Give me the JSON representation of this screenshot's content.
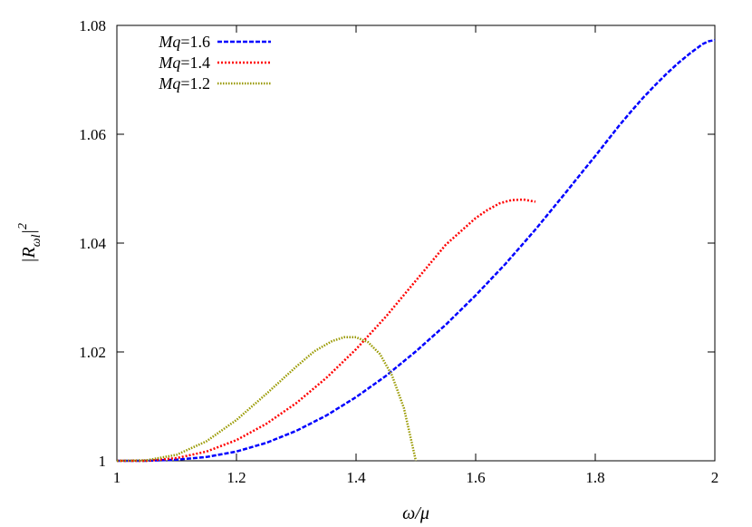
{
  "chart_data": {
    "type": "line",
    "title": "",
    "xlabel": "ω/μ",
    "ylabel": "|R_ωl|^2",
    "xlim": [
      1,
      2
    ],
    "ylim": [
      1,
      1.08
    ],
    "x_ticks": [
      "1",
      "1.2",
      "1.4",
      "1.6",
      "1.8",
      "2"
    ],
    "y_ticks": [
      "1",
      "1.02",
      "1.04",
      "1.06",
      "1.08"
    ],
    "grid": false,
    "legend_position": "top-left",
    "series": [
      {
        "name": "Mq=1.6",
        "label_italic": "Mq",
        "label_value": "=1.6",
        "color": "#0000ff",
        "dash": "dashed",
        "points": [
          [
            1.0,
            1.0
          ],
          [
            1.05,
            1.0
          ],
          [
            1.1,
            1.0002
          ],
          [
            1.15,
            1.0007
          ],
          [
            1.2,
            1.0017
          ],
          [
            1.25,
            1.0033
          ],
          [
            1.3,
            1.0055
          ],
          [
            1.35,
            1.0083
          ],
          [
            1.4,
            1.0117
          ],
          [
            1.45,
            1.0156
          ],
          [
            1.5,
            1.0201
          ],
          [
            1.55,
            1.025
          ],
          [
            1.6,
            1.0304
          ],
          [
            1.65,
            1.0362
          ],
          [
            1.7,
            1.0425
          ],
          [
            1.75,
            1.0492
          ],
          [
            1.78,
            1.0533
          ],
          [
            1.8,
            1.056
          ],
          [
            1.82,
            1.0588
          ],
          [
            1.84,
            1.0616
          ],
          [
            1.86,
            1.0642
          ],
          [
            1.88,
            1.0667
          ],
          [
            1.9,
            1.069
          ],
          [
            1.92,
            1.0712
          ],
          [
            1.94,
            1.0732
          ],
          [
            1.96,
            1.075
          ],
          [
            1.97,
            1.0758
          ],
          [
            1.98,
            1.0766
          ],
          [
            1.99,
            1.0771
          ],
          [
            2.0,
            1.0773
          ]
        ]
      },
      {
        "name": "Mq=1.4",
        "label_italic": "Mq",
        "label_value": "=1.4",
        "color": "#ff0000",
        "dash": "dotted",
        "points": [
          [
            1.0,
            1.0
          ],
          [
            1.05,
            1.0
          ],
          [
            1.1,
            1.0005
          ],
          [
            1.15,
            1.0017
          ],
          [
            1.2,
            1.0038
          ],
          [
            1.25,
            1.0068
          ],
          [
            1.3,
            1.0106
          ],
          [
            1.35,
            1.0152
          ],
          [
            1.4,
            1.0205
          ],
          [
            1.45,
            1.0265
          ],
          [
            1.5,
            1.0331
          ],
          [
            1.55,
            1.0397
          ],
          [
            1.6,
            1.0446
          ],
          [
            1.62,
            1.0461
          ],
          [
            1.64,
            1.0473
          ],
          [
            1.66,
            1.0479
          ],
          [
            1.68,
            1.048
          ],
          [
            1.7,
            1.0476
          ]
        ]
      },
      {
        "name": "Mq=1.2",
        "label_italic": "Mq",
        "label_value": "=1.2",
        "color": "#999900",
        "dash": "densely-dotted",
        "points": [
          [
            1.0,
            1.0
          ],
          [
            1.05,
            1.0001
          ],
          [
            1.1,
            1.0011
          ],
          [
            1.15,
            1.0036
          ],
          [
            1.2,
            1.0075
          ],
          [
            1.25,
            1.0123
          ],
          [
            1.3,
            1.0173
          ],
          [
            1.33,
            1.0201
          ],
          [
            1.36,
            1.022
          ],
          [
            1.38,
            1.0227
          ],
          [
            1.4,
            1.0227
          ],
          [
            1.42,
            1.0218
          ],
          [
            1.44,
            1.0196
          ],
          [
            1.46,
            1.0157
          ],
          [
            1.48,
            1.0097
          ],
          [
            1.5,
            1.0
          ]
        ]
      }
    ]
  }
}
